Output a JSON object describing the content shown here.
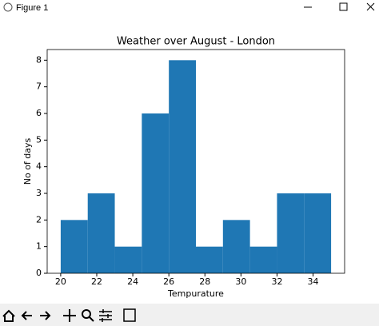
{
  "window": {
    "title": "Figure 1"
  },
  "chart_data": {
    "type": "histogram",
    "title": "Weather over August - London",
    "x_label": "Tempurature",
    "y_label": "No of days",
    "bins": [
      20,
      21.5,
      23,
      24.5,
      26,
      27.5,
      29,
      30.5,
      32,
      33.5,
      35
    ],
    "counts": [
      2,
      3,
      1,
      6,
      8,
      1,
      2,
      1,
      3,
      3
    ],
    "color": "#1f77b4",
    "xlim": [
      19.25,
      35.75
    ],
    "xticks": [
      20,
      22,
      24,
      26,
      28,
      30,
      32,
      34
    ],
    "ylim": [
      0,
      8.4
    ],
    "yticks": [
      0,
      1,
      2,
      3,
      4,
      5,
      6,
      7,
      8
    ]
  }
}
